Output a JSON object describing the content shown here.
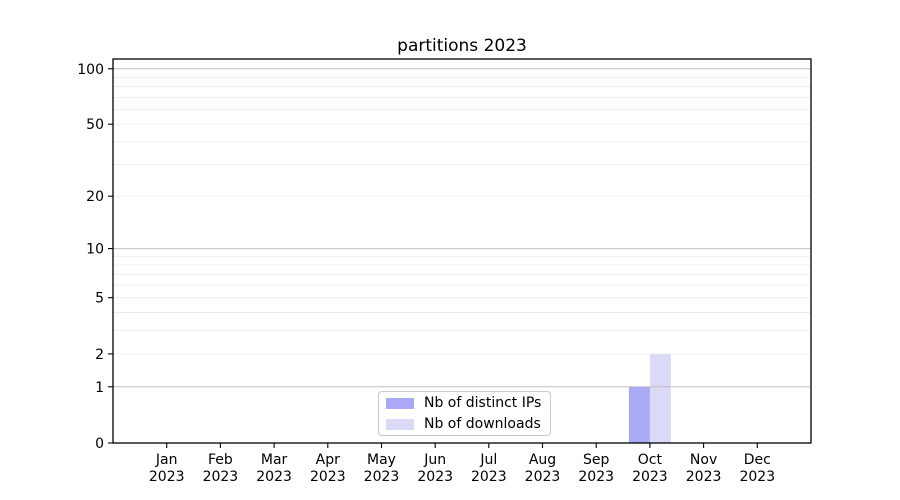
{
  "chart_data": {
    "type": "bar",
    "title": "partitions 2023",
    "x_tick_labels": [
      [
        "Jan",
        "2023"
      ],
      [
        "Feb",
        "2023"
      ],
      [
        "Mar",
        "2023"
      ],
      [
        "Apr",
        "2023"
      ],
      [
        "May",
        "2023"
      ],
      [
        "Jun",
        "2023"
      ],
      [
        "Jul",
        "2023"
      ],
      [
        "Aug",
        "2023"
      ],
      [
        "Sep",
        "2023"
      ],
      [
        "Oct",
        "2023"
      ],
      [
        "Nov",
        "2023"
      ],
      [
        "Dec",
        "2023"
      ]
    ],
    "series": [
      {
        "name": "Nb of distinct IPs",
        "color": "#a9a9f5",
        "values": [
          0,
          0,
          0,
          0,
          0,
          0,
          0,
          0,
          0,
          1,
          0,
          0
        ]
      },
      {
        "name": "Nb of downloads",
        "color": "#dadaf7",
        "values": [
          0,
          0,
          0,
          0,
          0,
          0,
          0,
          0,
          0,
          2,
          0,
          0
        ]
      }
    ],
    "yscale": "log1p",
    "ylim": [
      0,
      113
    ],
    "yticks": [
      0,
      1,
      2,
      5,
      10,
      20,
      50,
      100
    ],
    "grid": {
      "major": [
        1,
        10,
        100
      ],
      "minor": [
        2,
        3,
        4,
        5,
        6,
        7,
        8,
        9,
        20,
        30,
        40,
        50,
        60,
        70,
        80,
        90
      ]
    },
    "legend_position": "lower center"
  },
  "colors": {
    "background": "#ffffff",
    "axis": "#000000",
    "text": "#000000",
    "grid_major": "#c0c0c0",
    "grid_minor": "#ececec",
    "legend_border": "#c9c9c9"
  }
}
